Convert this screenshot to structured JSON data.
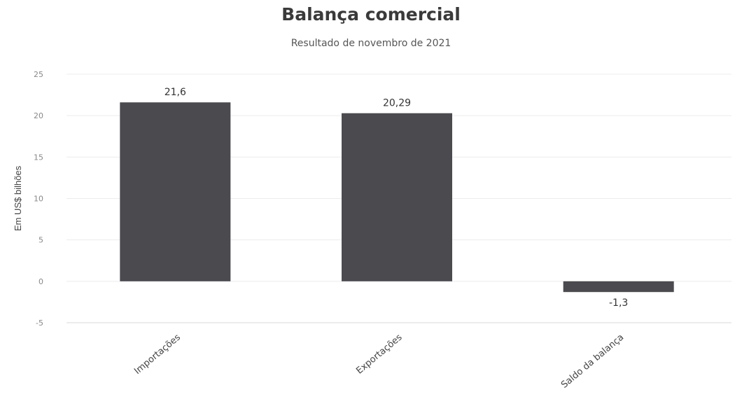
{
  "chart_data": {
    "type": "bar",
    "title": "Balança comercial",
    "subtitle": "Resultado de novembro de 2021",
    "ylabel": "Em US$ bilhões",
    "xlabel": "",
    "categories": [
      "Importações",
      "Exportações",
      "Saldo da balança"
    ],
    "values": [
      21.6,
      20.29,
      -1.3
    ],
    "data_labels": [
      "21,6",
      "20,29",
      "-1,3"
    ],
    "yticks": [
      25,
      20,
      15,
      10,
      5,
      0,
      -5
    ],
    "ylim": [
      -5,
      25
    ],
    "grid": true,
    "legend": "none",
    "colors": {
      "bar": "#4a4a4f",
      "grid": "#ececec"
    }
  }
}
